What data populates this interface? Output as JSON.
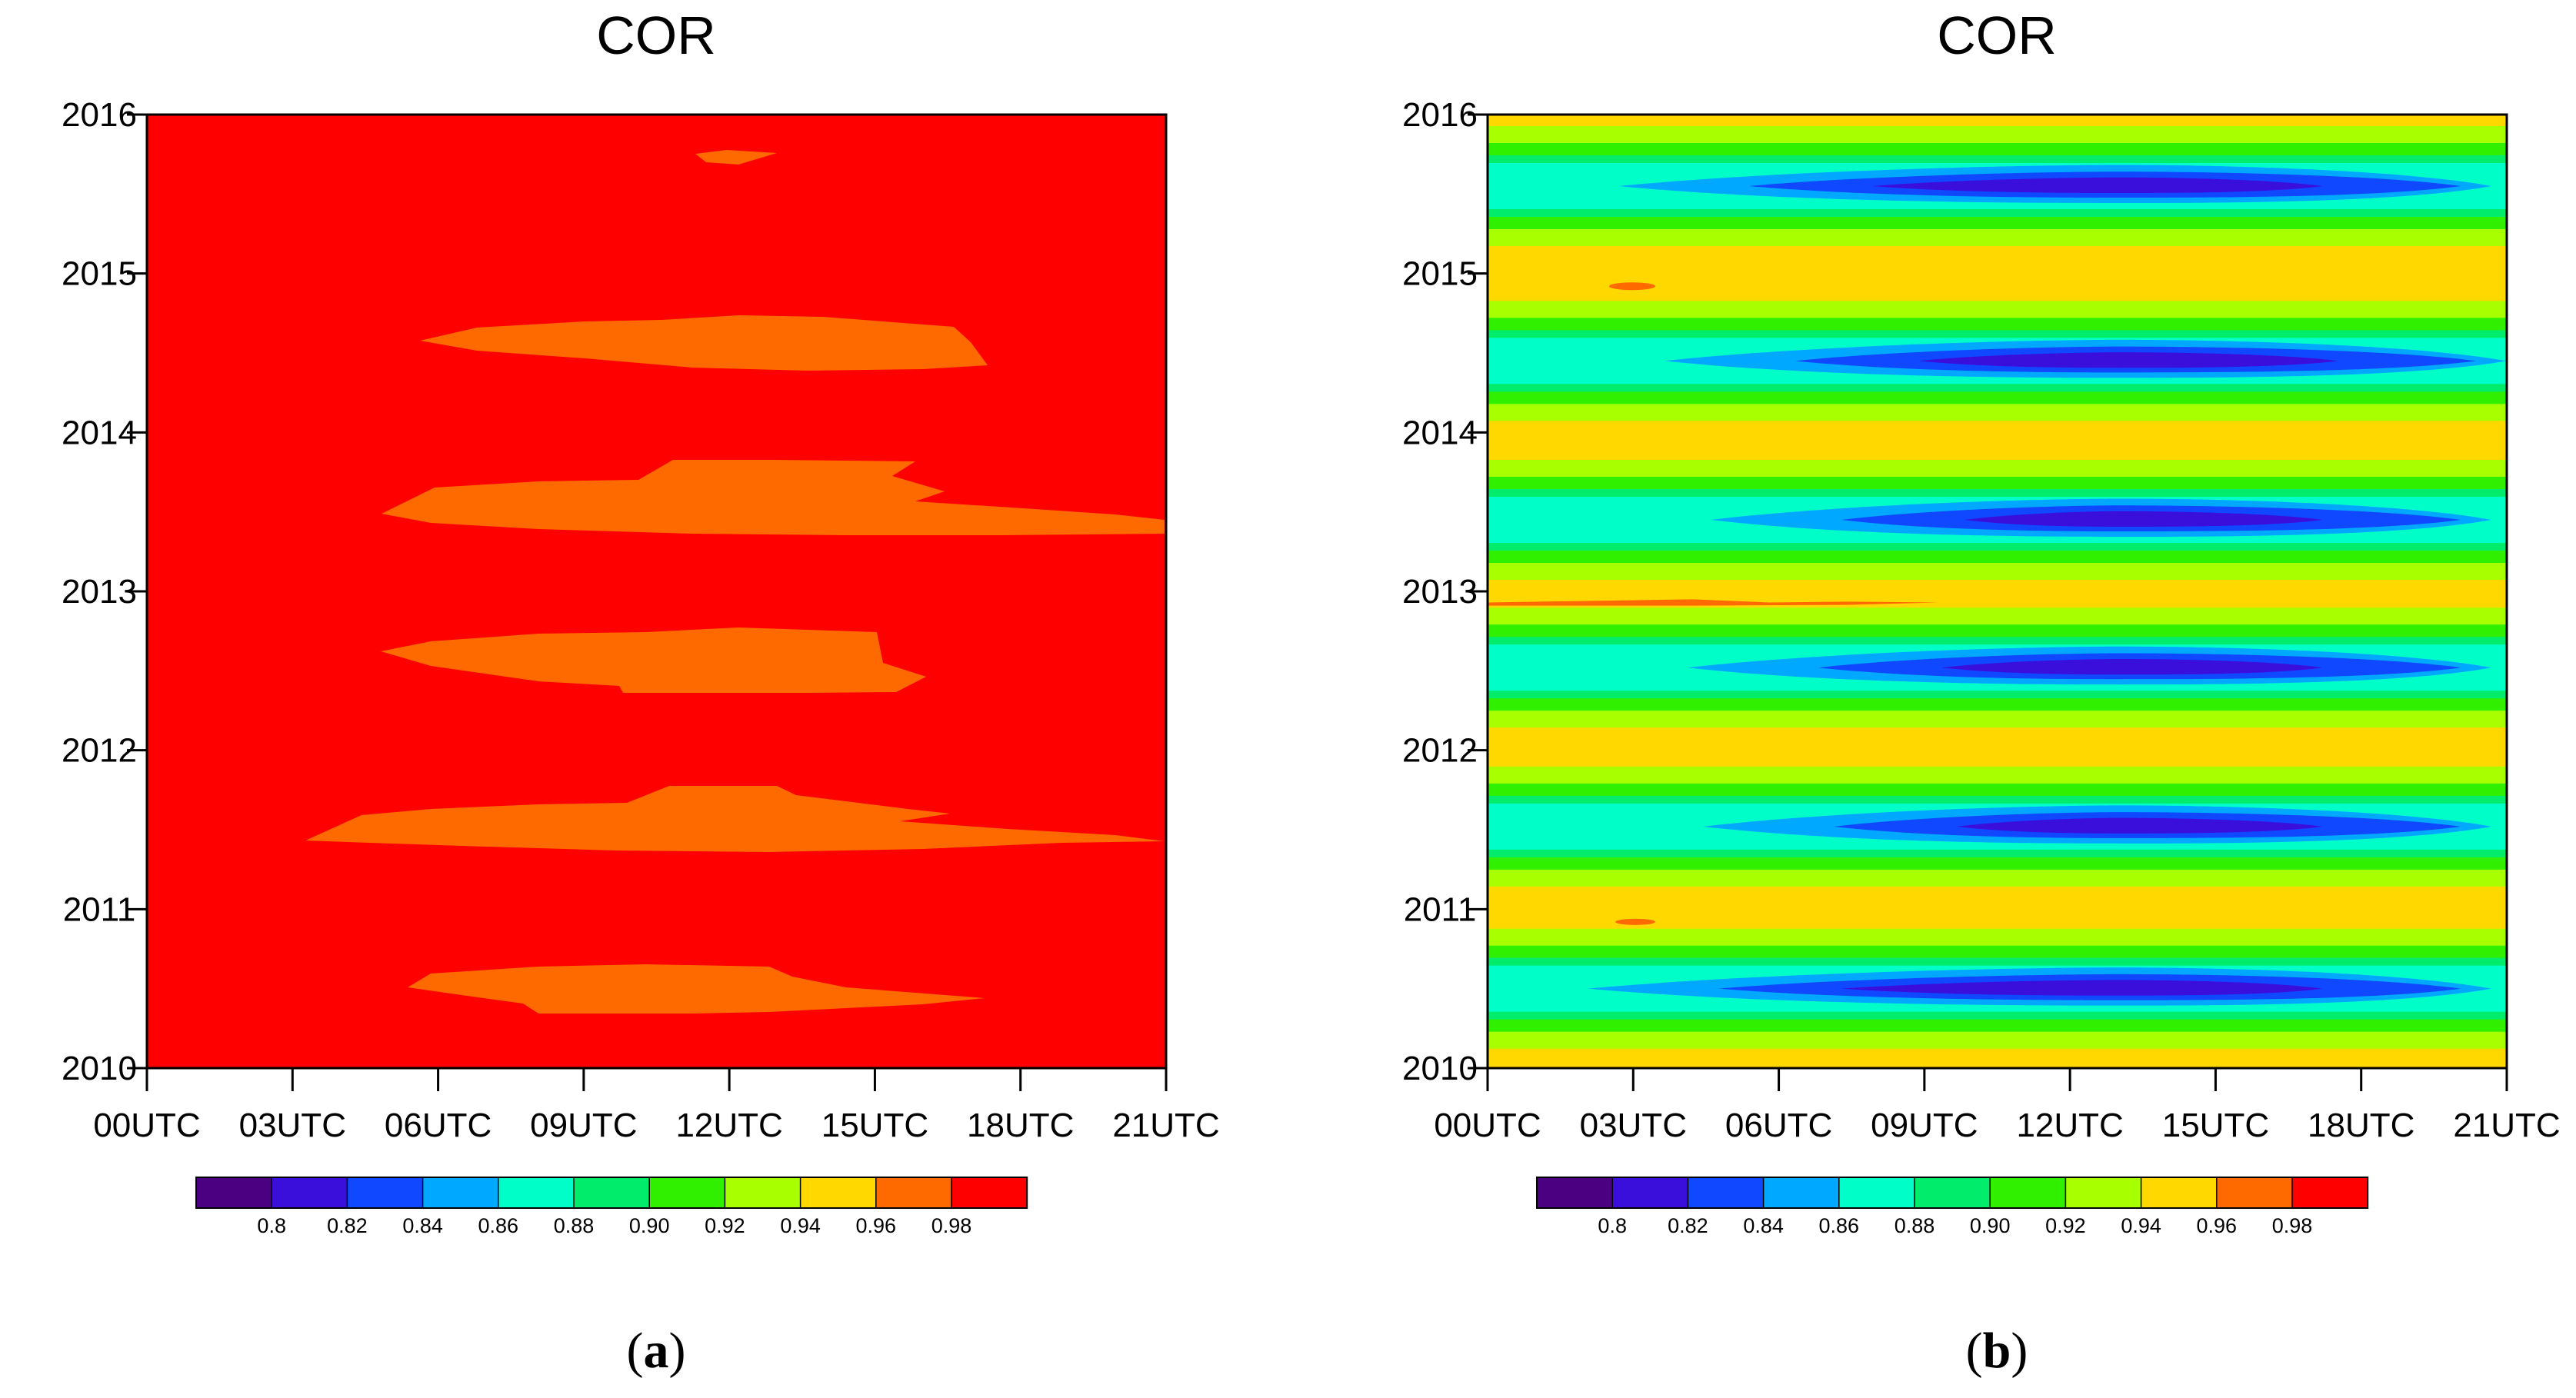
{
  "chart_data": [
    {
      "type": "heatmap",
      "subtype": "filled-contour",
      "panel_label": "a",
      "title": "COR",
      "xlabel": "",
      "ylabel": "",
      "x_tick_labels": [
        "00UTC",
        "03UTC",
        "06UTC",
        "09UTC",
        "12UTC",
        "15UTC",
        "18UTC",
        "21UTC"
      ],
      "x_values_utc_hour": [
        0,
        3,
        6,
        9,
        12,
        15,
        18,
        21
      ],
      "xlim": [
        0,
        21
      ],
      "y_tick_labels": [
        "2010",
        "2011",
        "2012",
        "2013",
        "2014",
        "2015",
        "2016"
      ],
      "ylim": [
        2010,
        2016
      ],
      "background_level": ">0.98",
      "features": [
        {
          "level": "0.96-0.98",
          "year_center": 2015.72,
          "x_range_utc": [
            11.2,
            13.0
          ],
          "half_height_years": 0.04
        },
        {
          "level": "0.96-0.98",
          "year_center": 2014.45,
          "x_range_utc": [
            5.7,
            17.4
          ],
          "half_height_years": 0.17
        },
        {
          "level": "0.96-0.98",
          "year_center": 2013.52,
          "x_range_utc": [
            4.8,
            21.0
          ],
          "half_height_years": 0.22
        },
        {
          "level": "0.96-0.98",
          "year_center": 2012.55,
          "x_range_utc": [
            4.9,
            16.4
          ],
          "half_height_years": 0.17
        },
        {
          "level": "0.96-0.98",
          "year_center": 2011.55,
          "x_range_utc": [
            3.2,
            21.0
          ],
          "half_height_years": 0.22
        },
        {
          "level": "0.96-0.98",
          "year_center": 2010.48,
          "x_range_utc": [
            5.5,
            17.2
          ],
          "half_height_years": 0.16
        }
      ],
      "colorbar": {
        "tick_labels": [
          "0.8",
          "0.82",
          "0.84",
          "0.86",
          "0.88",
          "0.90",
          "0.92",
          "0.94",
          "0.96",
          "0.98"
        ],
        "colors": [
          "#4b0082",
          "#3a0fdc",
          "#0f48ff",
          "#00a8ff",
          "#00ffc8",
          "#00ec6a",
          "#30f000",
          "#a8ff00",
          "#ffd800",
          "#ff6a00",
          "#ff0000"
        ]
      }
    },
    {
      "type": "heatmap",
      "subtype": "filled-contour",
      "panel_label": "b",
      "title": "COR",
      "xlabel": "",
      "ylabel": "",
      "x_tick_labels": [
        "00UTC",
        "03UTC",
        "06UTC",
        "09UTC",
        "12UTC",
        "15UTC",
        "18UTC",
        "21UTC"
      ],
      "x_values_utc_hour": [
        0,
        3,
        6,
        9,
        12,
        15,
        18,
        21
      ],
      "xlim": [
        0,
        21
      ],
      "y_tick_labels": [
        "2010",
        "2011",
        "2012",
        "2013",
        "2014",
        "2015",
        "2016"
      ],
      "ylim": [
        2010,
        2016
      ],
      "background_level": "0.94-0.96",
      "annual_minima": [
        {
          "year_center": 2015.55,
          "min_level": "0.82-0.84"
        },
        {
          "year_center": 2014.45,
          "min_level": "0.82-0.84"
        },
        {
          "year_center": 2013.45,
          "min_level": "0.80-0.82"
        },
        {
          "year_center": 2012.52,
          "min_level": "0.82-0.84"
        },
        {
          "year_center": 2011.52,
          "min_level": "0.80-0.82"
        },
        {
          "year_center": 2010.5,
          "min_level": "0.82-0.84"
        }
      ],
      "colorbar": {
        "tick_labels": [
          "0.8",
          "0.82",
          "0.84",
          "0.86",
          "0.88",
          "0.90",
          "0.92",
          "0.94",
          "0.96",
          "0.98"
        ],
        "colors": [
          "#4b0082",
          "#3a0fdc",
          "#0f48ff",
          "#00a8ff",
          "#00ffc8",
          "#00ec6a",
          "#30f000",
          "#a8ff00",
          "#ffd800",
          "#ff6a00",
          "#ff0000"
        ]
      }
    }
  ]
}
